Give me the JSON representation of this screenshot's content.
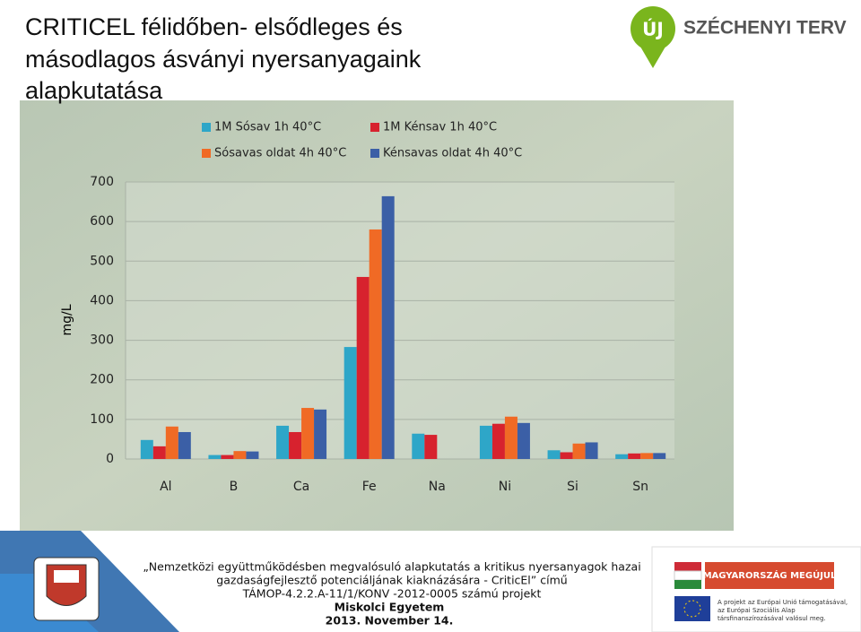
{
  "slide": {
    "title": [
      "CRITICEL félidőben- elsődleges és",
      "másodlagos ásványi nyersanyagaink",
      "alapkutatása"
    ],
    "logo_text": "SZÉCHENYI TERV",
    "logo_letter": "ÚJ",
    "footer": [
      "„Nemzetközi együttműködésben megvalósuló alapkutatás a kritikus nyersanyagok hazai",
      "gazdaságfejlesztő potenciáljának kiaknázására - CriticEl” című",
      "TÁMOP-4.2.2.A-11/1/KONV -2012-0005 számú projekt"
    ],
    "university": "Miskolci Egyetem",
    "date": "2013. November 14.",
    "banner": "MAGYARORSZÁG MEGÚJUL",
    "eu_text": [
      "A projekt az Európai Unió támogatásával,",
      "az Európai Szociális Alap",
      "társfinanszírozásával valósul meg."
    ]
  },
  "chart_data": {
    "type": "bar",
    "y_label": "mg/L",
    "categories": [
      "Al",
      "B",
      "Ca",
      "Fe",
      "Na",
      "Ni",
      "Si",
      "Sn"
    ],
    "series": [
      {
        "name": "1M Sósav 1h 40°C",
        "color": "#2ea6c8",
        "values": [
          48,
          10,
          84,
          283,
          64,
          84,
          22,
          12
        ]
      },
      {
        "name": "1M Kénsav 1h 40°C",
        "color": "#d7222e",
        "values": [
          32,
          10,
          68,
          460,
          61,
          89,
          17,
          14
        ]
      },
      {
        "name": "Sósavas oldat 4h 40°C",
        "color": "#f06a25",
        "values": [
          82,
          20,
          129,
          580,
          null,
          107,
          39,
          15
        ]
      },
      {
        "name": "Kénsavas oldat 4h 40°C",
        "color": "#3b5fa6",
        "values": [
          68,
          19,
          125,
          664,
          null,
          91,
          42,
          15
        ]
      }
    ],
    "ylim": [
      0,
      700
    ],
    "yticks": [
      0,
      100,
      200,
      300,
      400,
      500,
      600,
      700
    ],
    "grid": true
  }
}
